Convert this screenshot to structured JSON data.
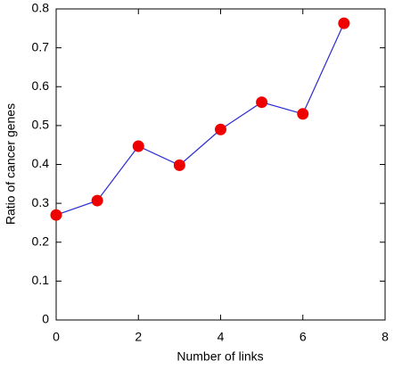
{
  "chart_data": {
    "type": "line",
    "x_label": "Number of links",
    "y_label": "Ratio of cancer genes",
    "x": [
      0,
      1,
      2,
      3,
      4,
      5,
      6,
      7
    ],
    "values": [
      0.27,
      0.307,
      0.447,
      0.398,
      0.49,
      0.56,
      0.53,
      0.763
    ],
    "line_color": "#2a2ad0",
    "marker_color": "#ee0000",
    "xlim": [
      0,
      8
    ],
    "xticks": [
      0,
      2,
      4,
      6,
      8
    ],
    "ylim": [
      0,
      0.8
    ],
    "yticks": [
      0,
      0.1,
      0.2,
      0.3,
      0.4,
      0.5,
      0.6,
      0.7,
      0.8
    ],
    "grid": false
  }
}
